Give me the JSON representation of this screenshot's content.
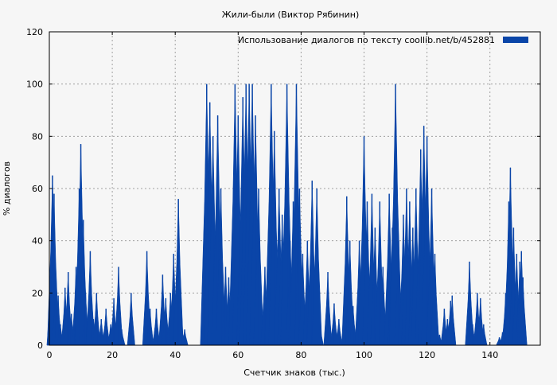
{
  "colors": {
    "background": "#f6f6f6",
    "series": "#0a45a8",
    "grid": "#a0a0a0"
  },
  "chart_data": {
    "type": "bar",
    "title": "Жили-были (Виктор Рябинин)",
    "xlabel": "Счетчик знаков (тыс.)",
    "ylabel": "% диалогов",
    "xlim": [
      0,
      156
    ],
    "ylim": [
      0,
      120
    ],
    "xticks": [
      0,
      20,
      40,
      60,
      80,
      100,
      120,
      140
    ],
    "yticks": [
      0,
      20,
      40,
      60,
      80,
      100,
      120
    ],
    "xtick_labels": [
      "0",
      "20",
      "40",
      "60",
      "80",
      "100",
      "120",
      "140"
    ],
    "ytick_labels": [
      "0",
      "20",
      "40",
      "60",
      "80",
      "100",
      "120"
    ],
    "grid": true,
    "legend_position": "top-right",
    "series": [
      {
        "name": "Использование диалогов по тексту  coollib.net/b/452881",
        "color": "#0a45a8",
        "peaks": [
          [
            0.5,
            26
          ],
          [
            1.0,
            65
          ],
          [
            1.5,
            58
          ],
          [
            2.0,
            20
          ],
          [
            2.8,
            19
          ],
          [
            3.5,
            8
          ],
          [
            5.0,
            22
          ],
          [
            6.0,
            28
          ],
          [
            7.0,
            12
          ],
          [
            8.5,
            30
          ],
          [
            9.5,
            60
          ],
          [
            10.0,
            77
          ],
          [
            10.8,
            48
          ],
          [
            11.5,
            20
          ],
          [
            13.0,
            36
          ],
          [
            14.0,
            10
          ],
          [
            15.0,
            20
          ],
          [
            16.5,
            10
          ],
          [
            18.0,
            14
          ],
          [
            19.5,
            8
          ],
          [
            20.5,
            18
          ],
          [
            22.0,
            30
          ],
          [
            23.0,
            6
          ],
          [
            26.0,
            20
          ],
          [
            31.0,
            36
          ],
          [
            32.0,
            14
          ],
          [
            34.0,
            14
          ],
          [
            36.0,
            27
          ],
          [
            37.0,
            18
          ],
          [
            38.5,
            20
          ],
          [
            39.5,
            35
          ],
          [
            40.5,
            30
          ],
          [
            41.0,
            56
          ],
          [
            42.0,
            8
          ],
          [
            43.0,
            6
          ],
          [
            50.0,
            100
          ],
          [
            51.0,
            93
          ],
          [
            52.0,
            80
          ],
          [
            53.5,
            88
          ],
          [
            54.5,
            60
          ],
          [
            56.0,
            30
          ],
          [
            57.0,
            26
          ],
          [
            58.0,
            20
          ],
          [
            59.0,
            100
          ],
          [
            60.0,
            88
          ],
          [
            61.5,
            95
          ],
          [
            62.5,
            100
          ],
          [
            63.5,
            100
          ],
          [
            64.5,
            100
          ],
          [
            65.5,
            88
          ],
          [
            66.5,
            60
          ],
          [
            68.5,
            30
          ],
          [
            70.5,
            100
          ],
          [
            71.5,
            82
          ],
          [
            73.0,
            60
          ],
          [
            74.0,
            50
          ],
          [
            75.5,
            100
          ],
          [
            76.5,
            40
          ],
          [
            77.5,
            55
          ],
          [
            78.5,
            100
          ],
          [
            79.5,
            60
          ],
          [
            80.5,
            35
          ],
          [
            82.0,
            40
          ],
          [
            83.5,
            63
          ],
          [
            85.0,
            60
          ],
          [
            86.0,
            8
          ],
          [
            88.5,
            28
          ],
          [
            90.5,
            16
          ],
          [
            92.0,
            10
          ],
          [
            94.5,
            57
          ],
          [
            95.5,
            40
          ],
          [
            96.5,
            15
          ],
          [
            98.5,
            40
          ],
          [
            100.0,
            80
          ],
          [
            101.0,
            55
          ],
          [
            102.5,
            58
          ],
          [
            103.5,
            45
          ],
          [
            105.0,
            55
          ],
          [
            106.0,
            30
          ],
          [
            108.0,
            58
          ],
          [
            109.0,
            45
          ],
          [
            110.0,
            100
          ],
          [
            111.0,
            40
          ],
          [
            112.5,
            50
          ],
          [
            113.5,
            60
          ],
          [
            114.5,
            55
          ],
          [
            115.5,
            45
          ],
          [
            116.5,
            60
          ],
          [
            118.0,
            75
          ],
          [
            119.0,
            84
          ],
          [
            120.0,
            80
          ],
          [
            121.5,
            60
          ],
          [
            122.5,
            35
          ],
          [
            124.0,
            4
          ],
          [
            125.5,
            14
          ],
          [
            126.5,
            10
          ],
          [
            127.5,
            17
          ],
          [
            128.0,
            19
          ],
          [
            133.5,
            32
          ],
          [
            134.5,
            8
          ],
          [
            136.0,
            20
          ],
          [
            137.0,
            18
          ],
          [
            138.0,
            8
          ],
          [
            143.0,
            3
          ],
          [
            144.0,
            5
          ],
          [
            145.0,
            20
          ],
          [
            146.0,
            55
          ],
          [
            146.5,
            68
          ],
          [
            147.5,
            45
          ],
          [
            148.5,
            35
          ],
          [
            149.5,
            32
          ],
          [
            150.0,
            36
          ],
          [
            150.5,
            26
          ]
        ]
      }
    ]
  }
}
